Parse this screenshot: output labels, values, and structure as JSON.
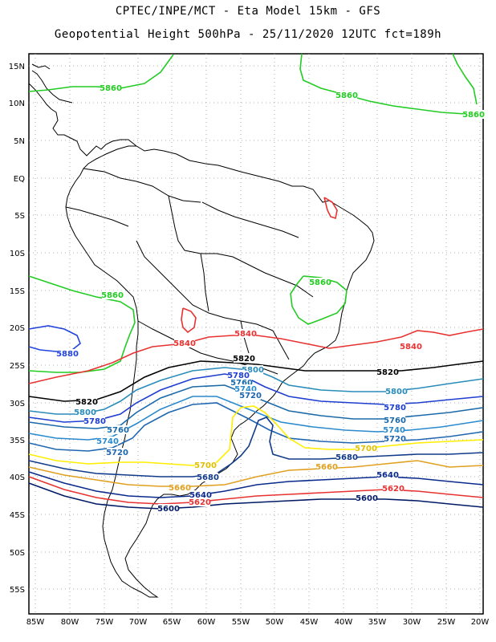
{
  "header": {
    "line1": "CPTEC/INPE/MCT -  Eta Model 15km - GFS",
    "line2": "Geopotential Height 500hPa - 25/11/2020 12UTC fct=189h"
  },
  "axes": {
    "lat_ticks": [
      "15N",
      "10N",
      "5N",
      "EQ",
      "5S",
      "10S",
      "15S",
      "20S",
      "25S",
      "30S",
      "35S",
      "40S",
      "45S",
      "50S",
      "55S"
    ],
    "lon_ticks": [
      "85W",
      "80W",
      "75W",
      "70W",
      "65W",
      "60W",
      "55W",
      "50W",
      "45W",
      "40W",
      "35W",
      "30W",
      "25W",
      "20W"
    ],
    "grid": "dotted"
  },
  "contour_levels": {
    "5600": "#001a66",
    "5620": "#e83232",
    "5640": "#0a2a8c",
    "5660": "#e0a020",
    "5680": "#103a8a",
    "5700": "#ffee00",
    "5720": "#1f66b0",
    "5740": "#2a8acd",
    "5760": "#1a6aaa",
    "5780": "#1d3ed0",
    "5800": "#2a8cba",
    "5820": "#000000",
    "5840": "#e83232",
    "5860": "#22cc22",
    "5880": "#2244dd"
  },
  "contour_labels": [
    {
      "text": "5860",
      "color": "#22cc22"
    },
    {
      "text": "5860",
      "color": "#22cc22"
    },
    {
      "text": "5860",
      "color": "#22cc22"
    },
    {
      "text": "5860",
      "color": "#22cc22"
    },
    {
      "text": "5860",
      "color": "#22cc22"
    },
    {
      "text": "5880",
      "color": "#2244dd"
    },
    {
      "text": "5840",
      "color": "#e83232"
    },
    {
      "text": "5840",
      "color": "#e83232"
    },
    {
      "text": "5840",
      "color": "#e83232"
    },
    {
      "text": "5820",
      "color": "#000000"
    },
    {
      "text": "5820",
      "color": "#000000"
    },
    {
      "text": "5820",
      "color": "#000000"
    },
    {
      "text": "5800",
      "color": "#2a8cba"
    },
    {
      "text": "5800",
      "color": "#2a8cba"
    },
    {
      "text": "5800",
      "color": "#2a8cba"
    },
    {
      "text": "5780",
      "color": "#1d3ed0"
    },
    {
      "text": "5780",
      "color": "#1d3ed0"
    },
    {
      "text": "5780",
      "color": "#1d3ed0"
    },
    {
      "text": "5760",
      "color": "#1a6aaa"
    },
    {
      "text": "5760",
      "color": "#1a6aaa"
    },
    {
      "text": "5760",
      "color": "#1a6aaa"
    },
    {
      "text": "5740",
      "color": "#2a8acd"
    },
    {
      "text": "5740",
      "color": "#2a8acd"
    },
    {
      "text": "5740",
      "color": "#2a8acd"
    },
    {
      "text": "5720",
      "color": "#1f66b0"
    },
    {
      "text": "5720",
      "color": "#1f66b0"
    },
    {
      "text": "5720",
      "color": "#1f66b0"
    },
    {
      "text": "5700",
      "color": "#e0c000"
    },
    {
      "text": "5700",
      "color": "#e0c000"
    },
    {
      "text": "5680",
      "color": "#103a8a"
    },
    {
      "text": "5680",
      "color": "#103a8a"
    },
    {
      "text": "5660",
      "color": "#e0a020"
    },
    {
      "text": "5660",
      "color": "#e0a020"
    },
    {
      "text": "5640",
      "color": "#0a2a8c"
    },
    {
      "text": "5640",
      "color": "#0a2a8c"
    },
    {
      "text": "5620",
      "color": "#e83232"
    },
    {
      "text": "5620",
      "color": "#e83232"
    },
    {
      "text": "5600",
      "color": "#001a66"
    },
    {
      "text": "5600",
      "color": "#001a66"
    }
  ]
}
